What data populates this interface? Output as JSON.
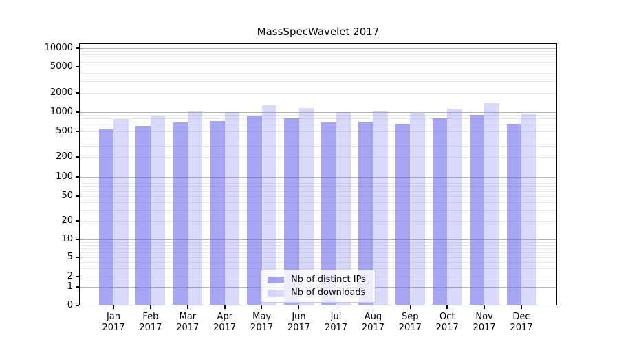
{
  "chart_data": {
    "type": "bar",
    "title": "MassSpecWavelet 2017",
    "categories": [
      "Jan 2017",
      "Feb 2017",
      "Mar 2017",
      "Apr 2017",
      "May 2017",
      "Jun 2017",
      "Jul 2017",
      "Aug 2017",
      "Sep 2017",
      "Oct 2017",
      "Nov 2017",
      "Dec 2017"
    ],
    "series": [
      {
        "name": "Nb of distinct IPs",
        "values": [
          535,
          615,
          690,
          720,
          890,
          810,
          695,
          715,
          655,
          800,
          910,
          660
        ],
        "color": "#6666ee",
        "opacity": 0.58,
        "rendered_color": "#a5a5f3"
      },
      {
        "name": "Nb of downloads",
        "values": [
          790,
          870,
          1020,
          1000,
          1280,
          1160,
          1010,
          1040,
          985,
          1130,
          1380,
          960
        ],
        "color": "#6666ee",
        "opacity": 0.25,
        "rendered_color": "#d9d9f9"
      }
    ],
    "yscale": "symlog",
    "ylim": [
      0,
      12000
    ],
    "yticks": [
      0,
      1,
      2,
      5,
      10,
      20,
      50,
      100,
      200,
      500,
      1000,
      2000,
      5000,
      10000
    ],
    "grid": true,
    "legend_position": "lower center"
  },
  "colors": {
    "grid_major": "#b4b4b4",
    "grid_minor": "#e8e8e8",
    "axis": "#000000",
    "legend_border": "#cccccc",
    "background": "#ffffff"
  }
}
